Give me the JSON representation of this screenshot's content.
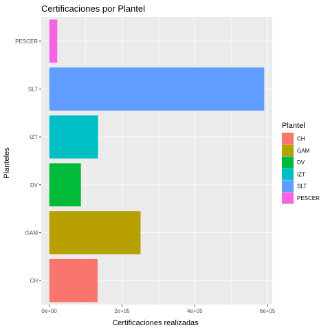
{
  "chart_data": {
    "type": "bar",
    "orientation": "horizontal",
    "title": "Certificaciones por Plantel",
    "xlabel": "Certificaciones realizadas",
    "ylabel": "Planteles",
    "categories": [
      "CH",
      "GAM",
      "DV",
      "IZT",
      "SLT",
      "PESCER"
    ],
    "values": [
      133000,
      251000,
      87000,
      134000,
      591000,
      22000
    ],
    "xlim": [
      -22000,
      613000
    ],
    "xticks": [
      0,
      200000,
      400000,
      600000
    ],
    "xtick_labels": [
      "0e+00",
      "2e+05",
      "4e+05",
      "6e+05"
    ],
    "grid": true,
    "legend": {
      "title": "Plantel",
      "placement": "right",
      "entries": [
        "CH",
        "GAM",
        "DV",
        "IZT",
        "SLT",
        "PESCER"
      ]
    },
    "colors": {
      "CH": "#F8766D",
      "GAM": "#B79F00",
      "DV": "#00BA38",
      "IZT": "#00BFC4",
      "SLT": "#619CFF",
      "PESCER": "#F564E3"
    },
    "panel_background": "#EBEBEB",
    "gridline_color": "#FFFFFF"
  }
}
